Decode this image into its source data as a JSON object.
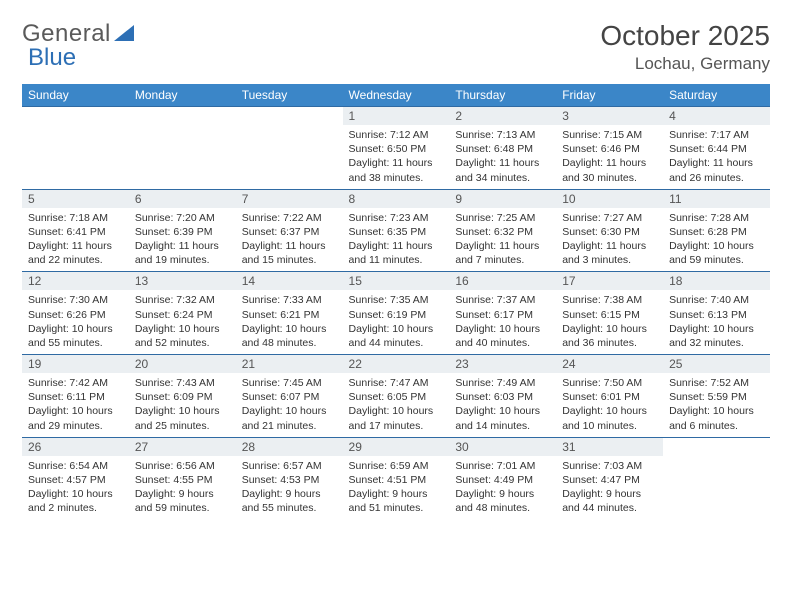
{
  "brand": {
    "part1": "General",
    "part2": "Blue"
  },
  "title": {
    "month": "October 2025",
    "location": "Lochau, Germany"
  },
  "colors": {
    "header_bg": "#3b86c8",
    "header_fg": "#ffffff",
    "row_border": "#2f6aa3",
    "daynum_bg": "#ebeff2",
    "brand_blue": "#2d6fb5"
  },
  "day_labels": [
    "Sunday",
    "Monday",
    "Tuesday",
    "Wednesday",
    "Thursday",
    "Friday",
    "Saturday"
  ],
  "weeks": [
    [
      {
        "num": "",
        "sunrise": "",
        "sunset": "",
        "daylight_a": "",
        "daylight_b": ""
      },
      {
        "num": "",
        "sunrise": "",
        "sunset": "",
        "daylight_a": "",
        "daylight_b": ""
      },
      {
        "num": "",
        "sunrise": "",
        "sunset": "",
        "daylight_a": "",
        "daylight_b": ""
      },
      {
        "num": "1",
        "sunrise": "Sunrise: 7:12 AM",
        "sunset": "Sunset: 6:50 PM",
        "daylight_a": "Daylight: 11 hours",
        "daylight_b": "and 38 minutes."
      },
      {
        "num": "2",
        "sunrise": "Sunrise: 7:13 AM",
        "sunset": "Sunset: 6:48 PM",
        "daylight_a": "Daylight: 11 hours",
        "daylight_b": "and 34 minutes."
      },
      {
        "num": "3",
        "sunrise": "Sunrise: 7:15 AM",
        "sunset": "Sunset: 6:46 PM",
        "daylight_a": "Daylight: 11 hours",
        "daylight_b": "and 30 minutes."
      },
      {
        "num": "4",
        "sunrise": "Sunrise: 7:17 AM",
        "sunset": "Sunset: 6:44 PM",
        "daylight_a": "Daylight: 11 hours",
        "daylight_b": "and 26 minutes."
      }
    ],
    [
      {
        "num": "5",
        "sunrise": "Sunrise: 7:18 AM",
        "sunset": "Sunset: 6:41 PM",
        "daylight_a": "Daylight: 11 hours",
        "daylight_b": "and 22 minutes."
      },
      {
        "num": "6",
        "sunrise": "Sunrise: 7:20 AM",
        "sunset": "Sunset: 6:39 PM",
        "daylight_a": "Daylight: 11 hours",
        "daylight_b": "and 19 minutes."
      },
      {
        "num": "7",
        "sunrise": "Sunrise: 7:22 AM",
        "sunset": "Sunset: 6:37 PM",
        "daylight_a": "Daylight: 11 hours",
        "daylight_b": "and 15 minutes."
      },
      {
        "num": "8",
        "sunrise": "Sunrise: 7:23 AM",
        "sunset": "Sunset: 6:35 PM",
        "daylight_a": "Daylight: 11 hours",
        "daylight_b": "and 11 minutes."
      },
      {
        "num": "9",
        "sunrise": "Sunrise: 7:25 AM",
        "sunset": "Sunset: 6:32 PM",
        "daylight_a": "Daylight: 11 hours",
        "daylight_b": "and 7 minutes."
      },
      {
        "num": "10",
        "sunrise": "Sunrise: 7:27 AM",
        "sunset": "Sunset: 6:30 PM",
        "daylight_a": "Daylight: 11 hours",
        "daylight_b": "and 3 minutes."
      },
      {
        "num": "11",
        "sunrise": "Sunrise: 7:28 AM",
        "sunset": "Sunset: 6:28 PM",
        "daylight_a": "Daylight: 10 hours",
        "daylight_b": "and 59 minutes."
      }
    ],
    [
      {
        "num": "12",
        "sunrise": "Sunrise: 7:30 AM",
        "sunset": "Sunset: 6:26 PM",
        "daylight_a": "Daylight: 10 hours",
        "daylight_b": "and 55 minutes."
      },
      {
        "num": "13",
        "sunrise": "Sunrise: 7:32 AM",
        "sunset": "Sunset: 6:24 PM",
        "daylight_a": "Daylight: 10 hours",
        "daylight_b": "and 52 minutes."
      },
      {
        "num": "14",
        "sunrise": "Sunrise: 7:33 AM",
        "sunset": "Sunset: 6:21 PM",
        "daylight_a": "Daylight: 10 hours",
        "daylight_b": "and 48 minutes."
      },
      {
        "num": "15",
        "sunrise": "Sunrise: 7:35 AM",
        "sunset": "Sunset: 6:19 PM",
        "daylight_a": "Daylight: 10 hours",
        "daylight_b": "and 44 minutes."
      },
      {
        "num": "16",
        "sunrise": "Sunrise: 7:37 AM",
        "sunset": "Sunset: 6:17 PM",
        "daylight_a": "Daylight: 10 hours",
        "daylight_b": "and 40 minutes."
      },
      {
        "num": "17",
        "sunrise": "Sunrise: 7:38 AM",
        "sunset": "Sunset: 6:15 PM",
        "daylight_a": "Daylight: 10 hours",
        "daylight_b": "and 36 minutes."
      },
      {
        "num": "18",
        "sunrise": "Sunrise: 7:40 AM",
        "sunset": "Sunset: 6:13 PM",
        "daylight_a": "Daylight: 10 hours",
        "daylight_b": "and 32 minutes."
      }
    ],
    [
      {
        "num": "19",
        "sunrise": "Sunrise: 7:42 AM",
        "sunset": "Sunset: 6:11 PM",
        "daylight_a": "Daylight: 10 hours",
        "daylight_b": "and 29 minutes."
      },
      {
        "num": "20",
        "sunrise": "Sunrise: 7:43 AM",
        "sunset": "Sunset: 6:09 PM",
        "daylight_a": "Daylight: 10 hours",
        "daylight_b": "and 25 minutes."
      },
      {
        "num": "21",
        "sunrise": "Sunrise: 7:45 AM",
        "sunset": "Sunset: 6:07 PM",
        "daylight_a": "Daylight: 10 hours",
        "daylight_b": "and 21 minutes."
      },
      {
        "num": "22",
        "sunrise": "Sunrise: 7:47 AM",
        "sunset": "Sunset: 6:05 PM",
        "daylight_a": "Daylight: 10 hours",
        "daylight_b": "and 17 minutes."
      },
      {
        "num": "23",
        "sunrise": "Sunrise: 7:49 AM",
        "sunset": "Sunset: 6:03 PM",
        "daylight_a": "Daylight: 10 hours",
        "daylight_b": "and 14 minutes."
      },
      {
        "num": "24",
        "sunrise": "Sunrise: 7:50 AM",
        "sunset": "Sunset: 6:01 PM",
        "daylight_a": "Daylight: 10 hours",
        "daylight_b": "and 10 minutes."
      },
      {
        "num": "25",
        "sunrise": "Sunrise: 7:52 AM",
        "sunset": "Sunset: 5:59 PM",
        "daylight_a": "Daylight: 10 hours",
        "daylight_b": "and 6 minutes."
      }
    ],
    [
      {
        "num": "26",
        "sunrise": "Sunrise: 6:54 AM",
        "sunset": "Sunset: 4:57 PM",
        "daylight_a": "Daylight: 10 hours",
        "daylight_b": "and 2 minutes."
      },
      {
        "num": "27",
        "sunrise": "Sunrise: 6:56 AM",
        "sunset": "Sunset: 4:55 PM",
        "daylight_a": "Daylight: 9 hours",
        "daylight_b": "and 59 minutes."
      },
      {
        "num": "28",
        "sunrise": "Sunrise: 6:57 AM",
        "sunset": "Sunset: 4:53 PM",
        "daylight_a": "Daylight: 9 hours",
        "daylight_b": "and 55 minutes."
      },
      {
        "num": "29",
        "sunrise": "Sunrise: 6:59 AM",
        "sunset": "Sunset: 4:51 PM",
        "daylight_a": "Daylight: 9 hours",
        "daylight_b": "and 51 minutes."
      },
      {
        "num": "30",
        "sunrise": "Sunrise: 7:01 AM",
        "sunset": "Sunset: 4:49 PM",
        "daylight_a": "Daylight: 9 hours",
        "daylight_b": "and 48 minutes."
      },
      {
        "num": "31",
        "sunrise": "Sunrise: 7:03 AM",
        "sunset": "Sunset: 4:47 PM",
        "daylight_a": "Daylight: 9 hours",
        "daylight_b": "and 44 minutes."
      },
      {
        "num": "",
        "sunrise": "",
        "sunset": "",
        "daylight_a": "",
        "daylight_b": ""
      }
    ]
  ]
}
